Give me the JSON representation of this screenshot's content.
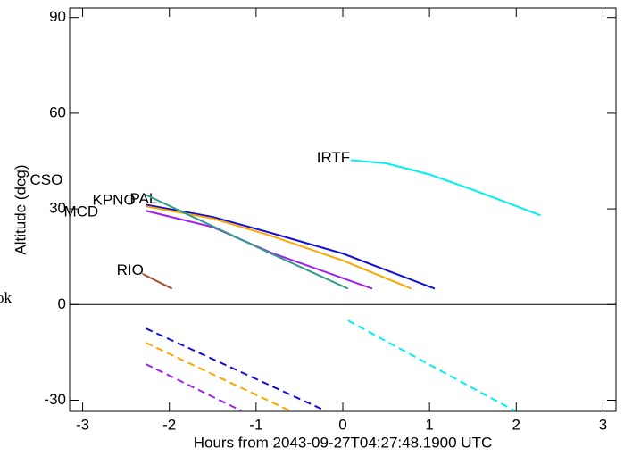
{
  "chart_data": {
    "type": "line",
    "xlabel": "Hours from 2043-09-27T04:27:48.1900 UTC",
    "ylabel": "Altitude (deg)",
    "annotation": "ok",
    "xlim": [
      -3.15,
      3.15
    ],
    "ylim": [
      -33.5,
      93
    ],
    "xticks": [
      -3,
      -2,
      -1,
      0,
      1,
      2,
      3
    ],
    "yticks": [
      -30,
      0,
      30,
      60,
      90
    ],
    "series": [
      {
        "name": "PAL",
        "color": "#1010d8",
        "x": [
          -2.27,
          -1.5,
          -0.82,
          0,
          0.5,
          1.06
        ],
        "values": [
          31.3,
          27.5,
          22.4,
          16,
          10.8,
          5
        ]
      },
      {
        "name": "KPNO",
        "color": "#ffa500",
        "x": [
          -2.27,
          -1.5,
          -0.82,
          0,
          0.79
        ],
        "values": [
          30.8,
          27,
          21.5,
          13.8,
          5
        ]
      },
      {
        "name": "MCD",
        "color": "#a020f0",
        "x": [
          -2.27,
          -1.5,
          -0.82,
          0.34
        ],
        "values": [
          29.4,
          24.3,
          16.2,
          5
        ]
      },
      {
        "name": "CSO",
        "color": "#2e9c8a",
        "x": [
          -2.27,
          -0.82,
          0.06
        ],
        "values": [
          34.4,
          15.9,
          5
        ]
      },
      {
        "name": "RIO",
        "color": "#a0522d",
        "x": [
          -2.3,
          -1.97
        ],
        "values": [
          9.5,
          5
        ]
      },
      {
        "name": "IRTF",
        "color": "#00f0f0",
        "x": [
          0.09,
          0.5,
          1,
          1.5,
          2.28
        ],
        "values": [
          45.3,
          44.3,
          40.8,
          36,
          28
        ]
      },
      {
        "color": "#1010d8",
        "dash": true,
        "x": [
          -2.27,
          -0.2
        ],
        "values": [
          -7.5,
          -33.3
        ]
      },
      {
        "color": "#ffa500",
        "dash": true,
        "x": [
          -2.27,
          -0.61
        ],
        "values": [
          -12,
          -33.3
        ]
      },
      {
        "color": "#a020f0",
        "dash": true,
        "x": [
          -2.27,
          -1.17
        ],
        "values": [
          -18.7,
          -33.3
        ]
      },
      {
        "color": "#00f0f0",
        "dash": true,
        "x": [
          0.06,
          1.98
        ],
        "values": [
          -5,
          -33.3
        ]
      }
    ]
  }
}
